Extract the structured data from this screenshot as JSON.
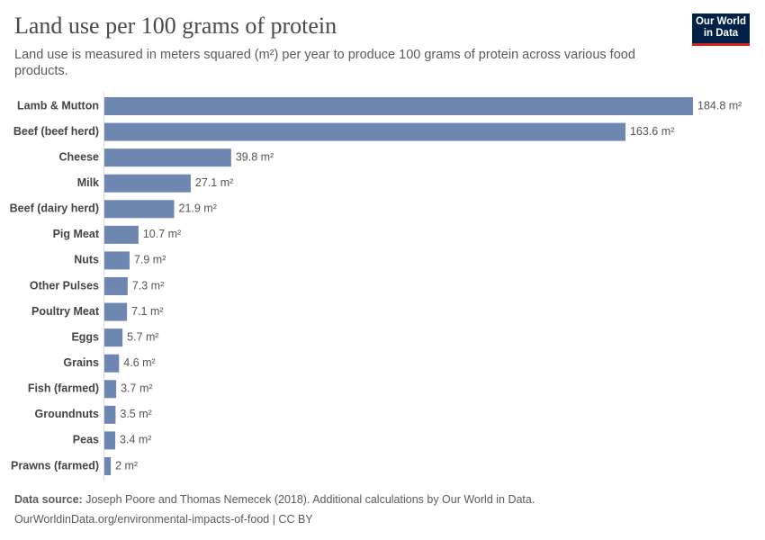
{
  "chart_data": {
    "type": "bar",
    "orientation": "horizontal",
    "title": "Land use per 100 grams of protein",
    "subtitle": "Land use is measured in meters squared (m²) per year to produce 100 grams of protein across various food products.",
    "categories": [
      "Lamb & Mutton",
      "Beef (beef herd)",
      "Cheese",
      "Milk",
      "Beef (dairy herd)",
      "Pig Meat",
      "Nuts",
      "Other Pulses",
      "Poultry Meat",
      "Eggs",
      "Grains",
      "Fish (farmed)",
      "Groundnuts",
      "Peas",
      "Prawns (farmed)"
    ],
    "values": [
      184.8,
      163.6,
      39.8,
      27.1,
      21.9,
      10.7,
      7.9,
      7.3,
      7.1,
      5.7,
      4.6,
      3.7,
      3.5,
      3.4,
      2
    ],
    "value_labels": [
      "184.8 m²",
      "163.6 m²",
      "39.8 m²",
      "27.1 m²",
      "21.9 m²",
      "10.7 m²",
      "7.9 m²",
      "7.3 m²",
      "7.1 m²",
      "5.7 m²",
      "4.6 m²",
      "3.7 m²",
      "3.5 m²",
      "3.4 m²",
      "2 m²"
    ],
    "color": "#6d87b0",
    "source_label": "Data source:",
    "source": "Joseph Poore and Thomas Nemecek (2018). Additional calculations by Our World in Data.",
    "url": "OurWorldinData.org/environmental-impacts-of-food | CC BY",
    "logo": [
      "Our World",
      "in Data"
    ]
  }
}
